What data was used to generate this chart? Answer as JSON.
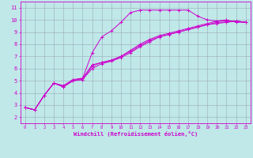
{
  "xlabel": "Windchill (Refroidissement éolien,°C)",
  "bg_color": "#c0e8e8",
  "line_color": "#cc00cc",
  "grid_color": "#99aabb",
  "xlim": [
    -0.5,
    23.5
  ],
  "ylim": [
    1.5,
    11.5
  ],
  "xticks": [
    0,
    1,
    2,
    3,
    4,
    5,
    6,
    7,
    8,
    9,
    10,
    11,
    12,
    13,
    14,
    15,
    16,
    17,
    18,
    19,
    20,
    21,
    22,
    23
  ],
  "yticks": [
    2,
    3,
    4,
    5,
    6,
    7,
    8,
    9,
    10,
    11
  ],
  "curves": [
    {
      "x": [
        0,
        1,
        2,
        3,
        4,
        5,
        6,
        7,
        8,
        9,
        10,
        11,
        12,
        13,
        14,
        15,
        16,
        17,
        18,
        19,
        20,
        21,
        22,
        23
      ],
      "y": [
        2.8,
        2.6,
        3.8,
        4.8,
        4.6,
        5.1,
        5.2,
        7.3,
        8.6,
        9.1,
        9.8,
        10.6,
        10.8,
        10.8,
        10.8,
        10.8,
        10.8,
        10.8,
        10.3,
        10.0,
        9.9,
        10.0,
        9.8,
        9.8
      ]
    },
    {
      "x": [
        0,
        1,
        2,
        3,
        4,
        5,
        6,
        7,
        8,
        9,
        10,
        11,
        12,
        13,
        14,
        15,
        16,
        17,
        18,
        19,
        20,
        21,
        22,
        23
      ],
      "y": [
        2.8,
        2.6,
        3.8,
        4.8,
        4.5,
        5.0,
        5.2,
        6.3,
        6.5,
        6.7,
        7.0,
        7.5,
        8.0,
        8.4,
        8.7,
        8.9,
        9.1,
        9.3,
        9.5,
        9.7,
        9.9,
        9.9,
        9.9,
        9.8
      ]
    },
    {
      "x": [
        0,
        1,
        2,
        3,
        4,
        5,
        6,
        7,
        8,
        9,
        10,
        11,
        12,
        13,
        14,
        15,
        16,
        17,
        18,
        19,
        20,
        21,
        22,
        23
      ],
      "y": [
        2.8,
        2.6,
        3.8,
        4.8,
        4.5,
        5.0,
        5.1,
        6.2,
        6.5,
        6.6,
        6.9,
        7.3,
        7.8,
        8.2,
        8.6,
        8.8,
        9.0,
        9.2,
        9.4,
        9.6,
        9.8,
        9.8,
        9.9,
        9.8
      ]
    },
    {
      "x": [
        0,
        1,
        2,
        3,
        4,
        5,
        6,
        7,
        8,
        9,
        10,
        11,
        12,
        13,
        14,
        15,
        16,
        17,
        18,
        19,
        20,
        21,
        22,
        23
      ],
      "y": [
        2.8,
        2.6,
        3.8,
        4.8,
        4.5,
        5.0,
        5.1,
        6.0,
        6.4,
        6.6,
        7.0,
        7.4,
        7.9,
        8.3,
        8.6,
        8.8,
        9.0,
        9.2,
        9.4,
        9.6,
        9.7,
        9.8,
        9.9,
        9.8
      ]
    }
  ]
}
